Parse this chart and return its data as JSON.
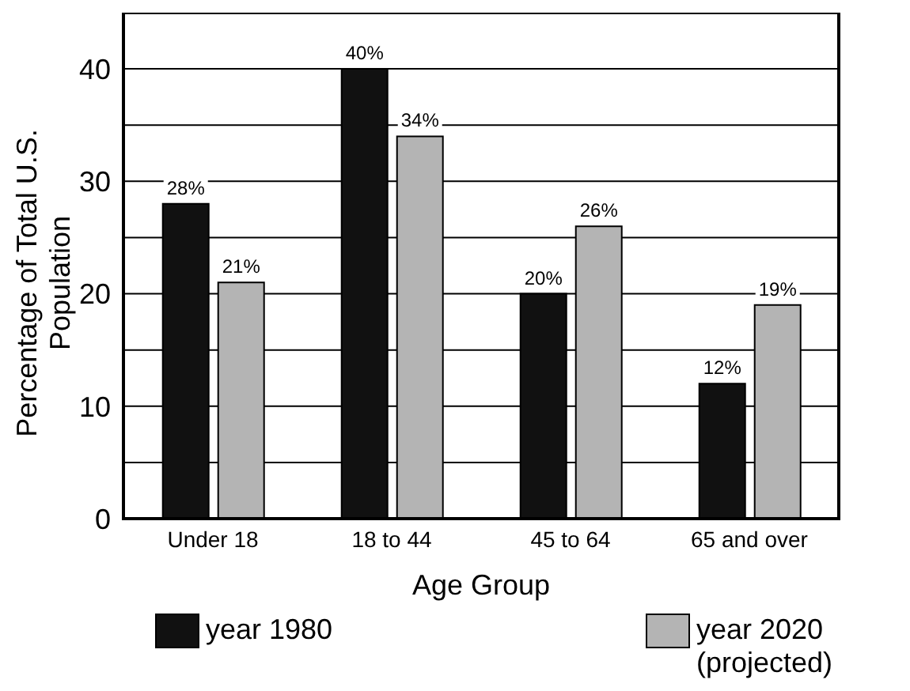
{
  "chart_data": {
    "type": "bar",
    "xlabel": "Age Group",
    "ylabel": "Percentage of Total U.S. Population",
    "categories": [
      "Under 18",
      "18 to 44",
      "45 to 64",
      "65 and over"
    ],
    "series": [
      {
        "name": "year 1980",
        "color": "#111111",
        "values": [
          28,
          40,
          20,
          12
        ],
        "value_labels": [
          "28%",
          "40%",
          "20%",
          "12%"
        ]
      },
      {
        "name": "year 2020 (projected)",
        "color": "#b4b4b4",
        "values": [
          21,
          34,
          26,
          19
        ],
        "value_labels": [
          "21%",
          "34%",
          "26%",
          "19%"
        ]
      }
    ],
    "ylim": [
      0,
      45
    ],
    "yticks": [
      0,
      {
        "value": 5,
        "label": null
      },
      10,
      {
        "value": 15,
        "label": null
      },
      20,
      {
        "value": 25,
        "label": null
      },
      30,
      {
        "value": 35,
        "label": null
      },
      40,
      {
        "value": 45,
        "label": null
      }
    ],
    "grid": "y",
    "legend": "bottom"
  }
}
